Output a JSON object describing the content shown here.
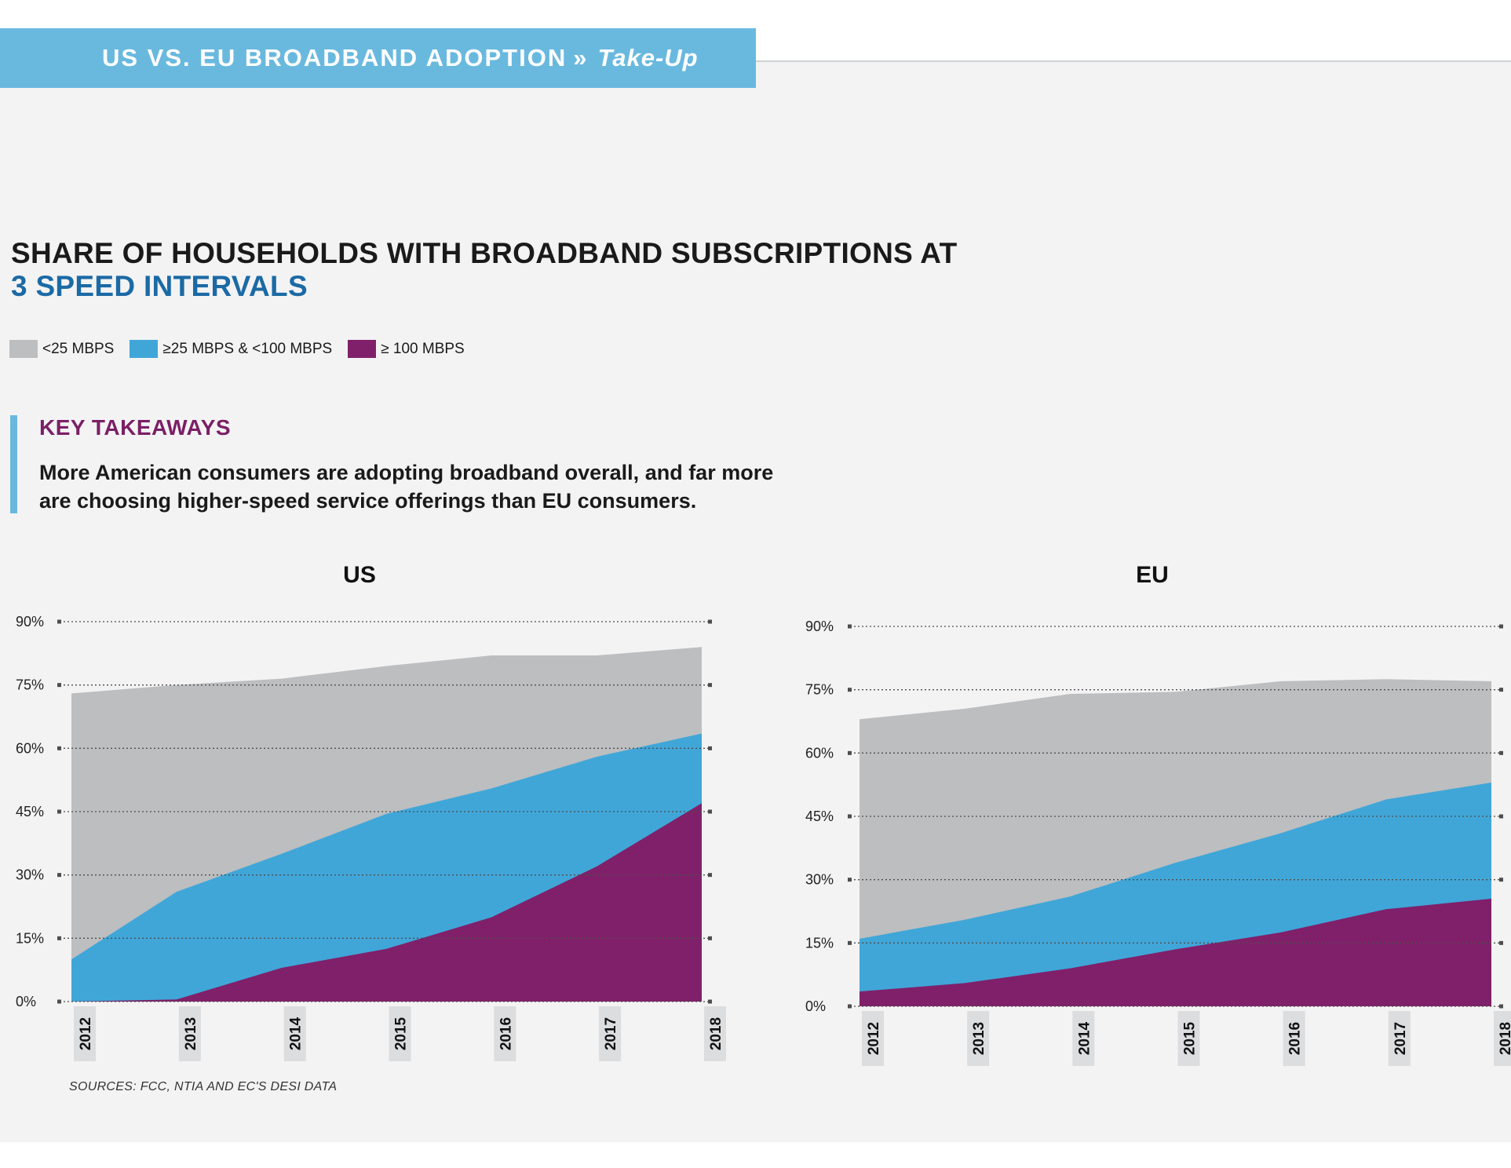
{
  "header": {
    "title": "US VS. EU BROADBAND ADOPTION",
    "separator": "»",
    "section": "Take-Up"
  },
  "main_title": {
    "line1": "SHARE OF HOUSEHOLDS WITH BROADBAND SUBSCRIPTIONS AT",
    "line2": "3 SPEED INTERVALS"
  },
  "legend": [
    {
      "label": "<25 MBPS",
      "color": "#bcbec0"
    },
    {
      "label": "≥25 MBPS & <100 MBPS",
      "color": "#40a6d8"
    },
    {
      "label": "≥ 100 MBPS",
      "color": "#80206a"
    }
  ],
  "takeaways": {
    "title": "KEY TAKEAWAYS",
    "line1": "More American consumers are adopting broadband overall, and far more",
    "line2": "are choosing higher-speed service offerings than EU consumers."
  },
  "sources": "SOURCES: FCC, NTIA AND EC'S DESI DATA",
  "chart_data": [
    {
      "type": "area",
      "title": "US",
      "x": [
        "2012",
        "2013",
        "2014",
        "2015",
        "2016",
        "2017",
        "2018"
      ],
      "yticks": [
        "0%",
        "15%",
        "30%",
        "45%",
        "60%",
        "75%",
        "90%"
      ],
      "ylim": [
        0,
        90
      ],
      "stacked_layers": true,
      "series": [
        {
          "name": "<25 MBPS",
          "color": "#bcbec0",
          "values": [
            73,
            75,
            76.5,
            79.5,
            82,
            82,
            84
          ]
        },
        {
          "name": "≥25 MBPS & <100 MBPS",
          "color": "#40a6d8",
          "values": [
            10,
            26,
            35,
            44.5,
            50.5,
            58,
            63.5
          ]
        },
        {
          "name": "≥ 100 MBPS",
          "color": "#80206a",
          "values": [
            0,
            0.5,
            8,
            12.5,
            20,
            32,
            47
          ]
        }
      ]
    },
    {
      "type": "area",
      "title": "EU",
      "x": [
        "2012",
        "2013",
        "2014",
        "2015",
        "2016",
        "2017",
        "2018"
      ],
      "yticks": [
        "0%",
        "15%",
        "30%",
        "45%",
        "60%",
        "75%",
        "90%"
      ],
      "ylim": [
        0,
        90
      ],
      "stacked_layers": true,
      "series": [
        {
          "name": "<25 MBPS",
          "color": "#bcbec0",
          "values": [
            68,
            70.5,
            74,
            74.5,
            77,
            77.5,
            77
          ]
        },
        {
          "name": "≥25 MBPS & <100 MBPS",
          "color": "#40a6d8",
          "values": [
            16,
            20.5,
            26,
            34,
            41,
            49,
            53
          ]
        },
        {
          "name": "≥ 100 MBPS",
          "color": "#80206a",
          "values": [
            3.5,
            5.5,
            9,
            13.5,
            17.5,
            23,
            25.5
          ]
        }
      ]
    }
  ]
}
